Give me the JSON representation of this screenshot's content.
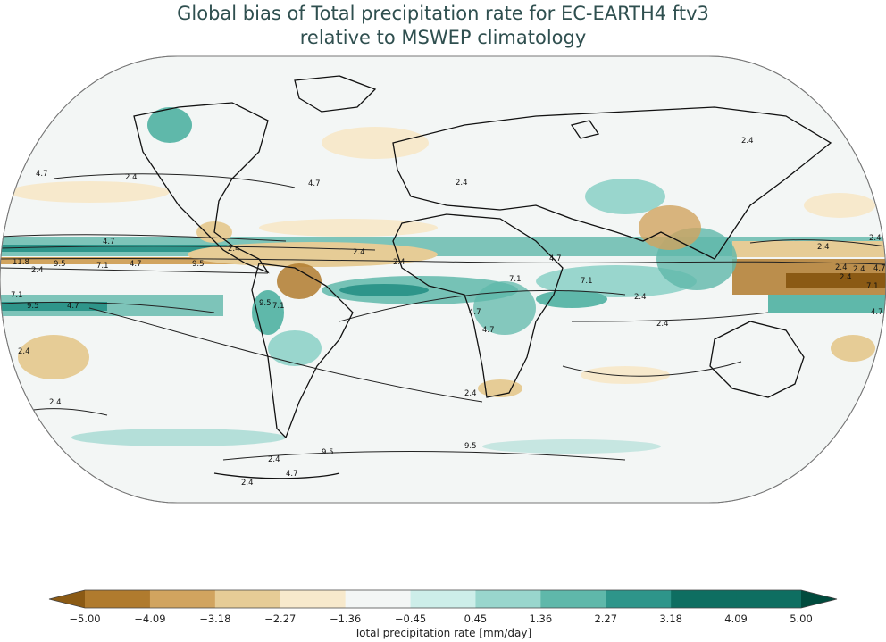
{
  "title": {
    "line1": "Global bias of Total precipitation rate for EC-EARTH4 ftv3",
    "line2": "relative to MSWEP climatology"
  },
  "map": {
    "projection": "Robinson",
    "ocean_color": "#f3f6f5",
    "contour_labels": [
      "4.7",
      "2.4",
      "4.7",
      "2.4",
      "4.7",
      "2.4",
      "11.8",
      "9.5",
      "7.1",
      "4.7",
      "9.5",
      "2.4",
      "7.1",
      "9.5",
      "4.7",
      "2.4",
      "2.4",
      "9.5",
      "7.1",
      "2.4",
      "2.4",
      "4.7",
      "7.1",
      "4.7",
      "7.1",
      "4.7",
      "2.4",
      "2.4",
      "2.4",
      "2.4",
      "2.4",
      "2.4",
      "2.4",
      "4.7",
      "2.4",
      "7.1",
      "4.7",
      "9.5",
      "9.5",
      "2.4",
      "4.7",
      "2.4",
      "2.4"
    ]
  },
  "colorbar": {
    "ticks": [
      "−5.00",
      "−4.09",
      "−3.18",
      "−2.27",
      "−1.36",
      "−0.45",
      "0.45",
      "1.36",
      "2.27",
      "3.18",
      "4.09",
      "5.00"
    ],
    "colors": [
      "#8b5a14",
      "#b07b2e",
      "#d1a45f",
      "#e6cc96",
      "#f7e9cc",
      "#f3f6f5",
      "#cdeee9",
      "#99d6cd",
      "#5fb8aa",
      "#2e958a",
      "#0e6e61",
      "#004b3d"
    ],
    "label": "Total precipitation rate [mm/day]"
  }
}
